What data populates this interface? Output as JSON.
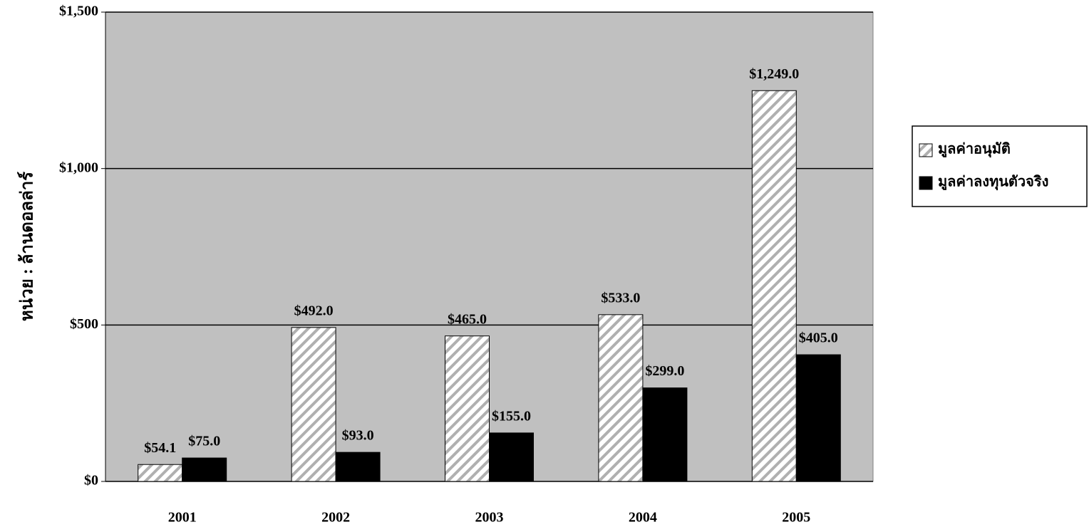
{
  "chart_data": {
    "type": "bar",
    "y_label": "หน่วย : ล้านดอลล่าร์",
    "categories": [
      "2001",
      "2002",
      "2003",
      "2004",
      "2005"
    ],
    "series": [
      {
        "name": "มูลค่าอนุมัติ",
        "color": "#ffffff",
        "hatch": true,
        "values": [
          54.1,
          492.0,
          465.0,
          533.0,
          1249.0
        ],
        "value_labels": [
          "$54.1",
          "$492.0",
          "$465.0",
          "$533.0",
          "$1,249.0"
        ]
      },
      {
        "name": "มูลค่าลงทุนตัวจริง",
        "color": "#000000",
        "hatch": false,
        "values": [
          75.0,
          93.0,
          155.0,
          299.0,
          405.0
        ],
        "value_labels": [
          "$75.0",
          "$93.0",
          "$155.0",
          "$299.0",
          "$405.0"
        ]
      }
    ],
    "ylim": [
      0,
      1500
    ],
    "yticks": [
      {
        "value": 0,
        "label": "$0"
      },
      {
        "value": 500,
        "label": "$500"
      },
      {
        "value": 1000,
        "label": "$1,000"
      },
      {
        "value": 1500,
        "label": "$1,500"
      }
    ],
    "grid": true,
    "legend": "right"
  }
}
